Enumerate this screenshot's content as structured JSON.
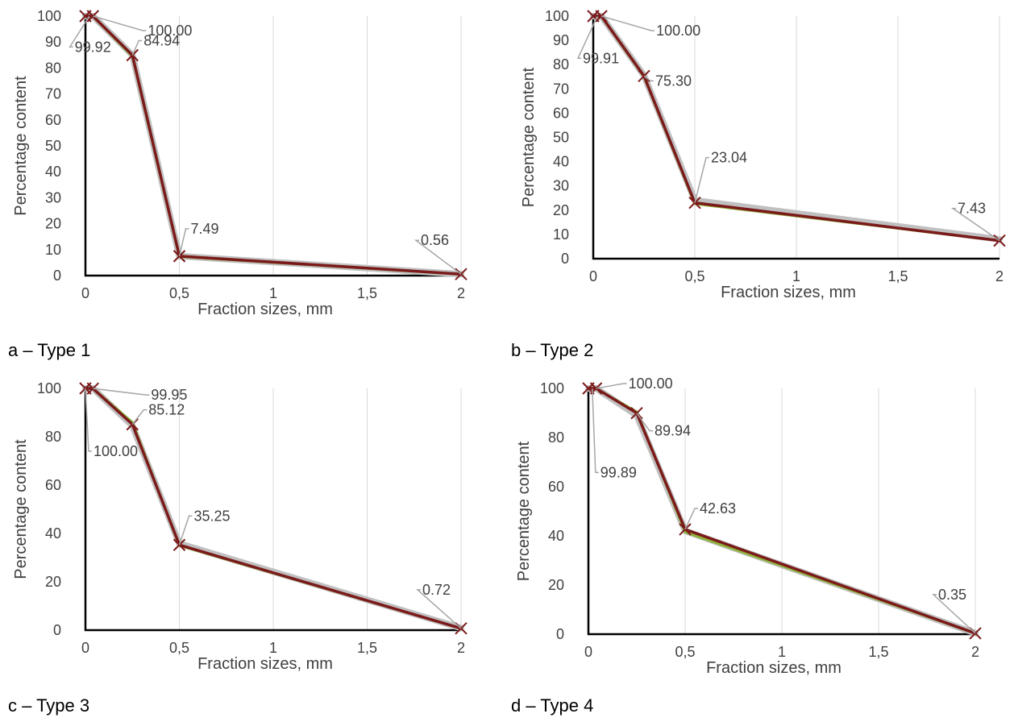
{
  "chart_data": [
    {
      "type": "line",
      "caption": "a – Type 1",
      "xlabel": "Fraction sizes, mm",
      "ylabel": "Percentage content",
      "xlim": [
        0,
        2
      ],
      "ylim": [
        0,
        100
      ],
      "xticks": [
        0,
        0.5,
        1,
        1.5,
        2
      ],
      "xtick_labels": [
        "0",
        "0,5",
        "1",
        "1,5",
        "2"
      ],
      "yticks": [
        0,
        10,
        20,
        30,
        40,
        50,
        60,
        70,
        80,
        90,
        100
      ],
      "ytick_labels": [
        "0",
        "10",
        "20",
        "30",
        "40",
        "50",
        "60",
        "70",
        "80",
        "90",
        "100"
      ],
      "grid": "vertical",
      "x": [
        0,
        0.04,
        0.25,
        0.5,
        2
      ],
      "series": [
        {
          "values": [
            100,
            100,
            85,
            7.5,
            0.56
          ],
          "color": "#c0c0c0"
        },
        {
          "values": [
            100,
            99.9,
            84.5,
            7.3,
            0.5
          ],
          "color": "#8db33a"
        },
        {
          "values": [
            100,
            100,
            84.94,
            7.49,
            0.56
          ],
          "color": "#7b1a1a"
        }
      ],
      "data_labels": [
        {
          "x": 0.04,
          "y": 100,
          "text": "100.00"
        },
        {
          "x": 0.25,
          "y": 84.94,
          "text": "84.94"
        },
        {
          "x": 0.02,
          "y": 99.92,
          "text": "99.92"
        },
        {
          "x": 0.5,
          "y": 7.49,
          "text": "7.49"
        },
        {
          "x": 2,
          "y": 0.56,
          "text": "0.56"
        }
      ]
    },
    {
      "type": "line",
      "caption": "b – Type 2",
      "xlabel": "Fraction sizes, mm",
      "ylabel": "Percentage content",
      "xlim": [
        0,
        2
      ],
      "ylim": [
        0,
        100
      ],
      "xticks": [
        0,
        0.5,
        1,
        1.5,
        2
      ],
      "xtick_labels": [
        "0",
        "0,5",
        "1",
        "1,5",
        "2"
      ],
      "yticks": [
        0,
        10,
        20,
        30,
        40,
        50,
        60,
        70,
        80,
        90,
        100
      ],
      "ytick_labels": [
        "0",
        "10",
        "20",
        "30",
        "40",
        "50",
        "60",
        "70",
        "80",
        "90",
        "100"
      ],
      "grid": "vertical",
      "x": [
        0,
        0.04,
        0.25,
        0.5,
        2
      ],
      "series": [
        {
          "values": [
            100,
            100,
            75.5,
            24,
            8
          ],
          "color": "#c0c0c0"
        },
        {
          "values": [
            100,
            99.9,
            75,
            22.6,
            7.4
          ],
          "color": "#8db33a"
        },
        {
          "values": [
            100,
            100,
            75.3,
            23.04,
            7.43
          ],
          "color": "#7b1a1a"
        }
      ],
      "data_labels": [
        {
          "x": 0.04,
          "y": 100,
          "text": "100.00"
        },
        {
          "x": 0.02,
          "y": 99.91,
          "text": "99.91"
        },
        {
          "x": 0.25,
          "y": 75.3,
          "text": "75.30"
        },
        {
          "x": 0.5,
          "y": 23.04,
          "text": "23.04"
        },
        {
          "x": 2,
          "y": 7.43,
          "text": "7.43"
        }
      ]
    },
    {
      "type": "line",
      "caption": "c – Type 3",
      "xlabel": "Fraction sizes, mm",
      "ylabel": "Percentage content",
      "xlim": [
        0,
        2
      ],
      "ylim": [
        0,
        100
      ],
      "xticks": [
        0,
        0.5,
        1,
        1.5,
        2
      ],
      "xtick_labels": [
        "0",
        "0,5",
        "1",
        "1,5",
        "2"
      ],
      "yticks": [
        0,
        20,
        40,
        60,
        80,
        100
      ],
      "ytick_labels": [
        "0",
        "20",
        "40",
        "60",
        "80",
        "100"
      ],
      "grid": "vertical",
      "x": [
        0,
        0.04,
        0.25,
        0.5,
        2
      ],
      "series": [
        {
          "values": [
            100,
            100,
            84.5,
            35.8,
            0.9
          ],
          "color": "#c0c0c0"
        },
        {
          "values": [
            100,
            99.95,
            86,
            35,
            0.7
          ],
          "color": "#8db33a"
        },
        {
          "values": [
            100,
            99.95,
            85.12,
            35.25,
            0.72
          ],
          "color": "#7b1a1a"
        }
      ],
      "data_labels": [
        {
          "x": 0.04,
          "y": 99.95,
          "text": "99.95"
        },
        {
          "x": 0.25,
          "y": 85.12,
          "text": "85.12"
        },
        {
          "x": 0,
          "y": 100,
          "text": "100.00"
        },
        {
          "x": 0.5,
          "y": 35.25,
          "text": "35.25"
        },
        {
          "x": 2,
          "y": 0.72,
          "text": "0.72"
        }
      ]
    },
    {
      "type": "line",
      "caption": "d – Type 4",
      "xlabel": "Fraction sizes, mm",
      "ylabel": "Percentage content",
      "xlim": [
        0,
        2
      ],
      "ylim": [
        0,
        100
      ],
      "xticks": [
        0,
        0.5,
        1,
        1.5,
        2
      ],
      "xtick_labels": [
        "0",
        "0,5",
        "1",
        "1,5",
        "2"
      ],
      "yticks": [
        0,
        20,
        40,
        60,
        80,
        100
      ],
      "ytick_labels": [
        "0",
        "20",
        "40",
        "60",
        "80",
        "100"
      ],
      "grid": "vertical",
      "x": [
        0,
        0.04,
        0.25,
        0.5,
        2
      ],
      "series": [
        {
          "values": [
            100,
            100,
            89,
            42,
            0.4
          ],
          "color": "#c0c0c0"
        },
        {
          "values": [
            100,
            99.9,
            90.5,
            41.5,
            0.3
          ],
          "color": "#8db33a"
        },
        {
          "values": [
            100,
            100,
            89.94,
            42.63,
            0.35
          ],
          "color": "#7b1a1a"
        }
      ],
      "data_labels": [
        {
          "x": 0.04,
          "y": 100,
          "text": "100.00"
        },
        {
          "x": 0.25,
          "y": 89.94,
          "text": "89.94"
        },
        {
          "x": 0.02,
          "y": 99.89,
          "text": "99.89"
        },
        {
          "x": 0.5,
          "y": 42.63,
          "text": "42.63"
        },
        {
          "x": 2,
          "y": 0.35,
          "text": "0.35"
        }
      ]
    }
  ]
}
